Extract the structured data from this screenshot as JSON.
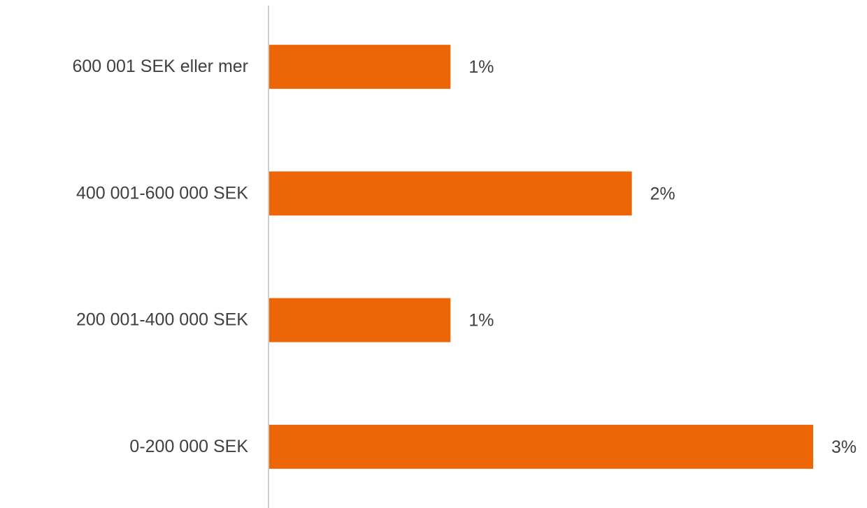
{
  "chart_data": {
    "type": "bar",
    "orientation": "horizontal",
    "categories": [
      "600 001 SEK eller mer",
      "400 001-600 000 SEK",
      "200 001-400 000 SEK",
      "0-200 000 SEK"
    ],
    "values": [
      1,
      2,
      1,
      3
    ],
    "value_labels": [
      "1%",
      "2%",
      "1%",
      "3%"
    ],
    "color": "#ec6608"
  }
}
